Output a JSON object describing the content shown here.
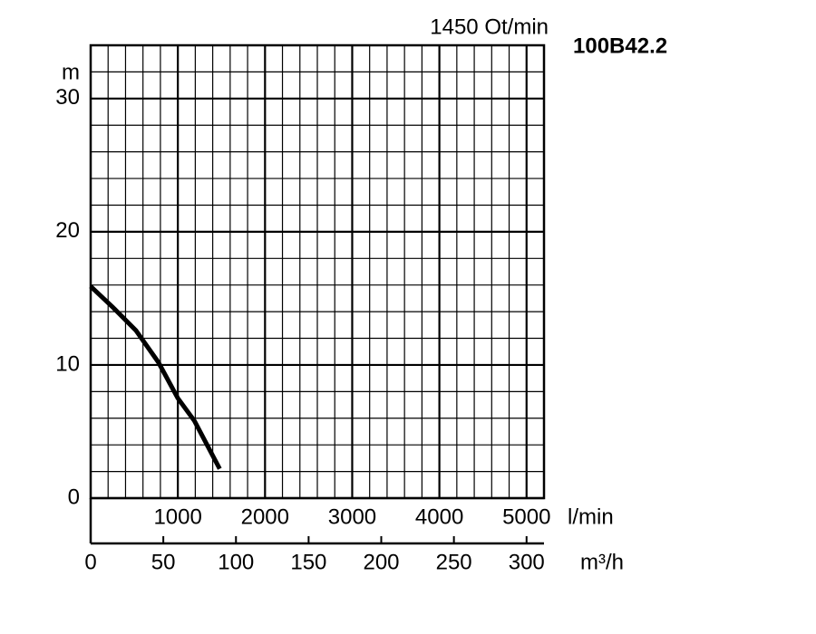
{
  "chart_data": {
    "type": "line",
    "title": "1450 Ot/min",
    "subtitle": "100B42.2",
    "y_label": "m",
    "x_label": "l/min",
    "x2_label": "m³/h",
    "x": [
      0,
      259,
      518,
      777,
      1000,
      1190,
      1480
    ],
    "series": [
      {
        "name": "100B42.2",
        "color": "#000000",
        "values": [
          15.9,
          14.3,
          12.6,
          10.2,
          7.5,
          5.8,
          2.2
        ]
      }
    ],
    "xlim": [
      0,
      5200
    ],
    "xticks": [
      1000,
      2000,
      3000,
      4000,
      5000
    ],
    "x2lim": [
      0,
      312
    ],
    "x2ticks": [
      0,
      50,
      100,
      150,
      200,
      250,
      300
    ],
    "ylim": [
      0,
      34
    ],
    "yticks": [
      0,
      10,
      20,
      30
    ],
    "minor_grid": {
      "x": 200,
      "y": 2
    },
    "grid": true
  }
}
